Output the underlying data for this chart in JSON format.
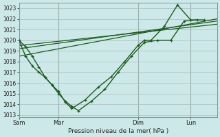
{
  "xlabel": "Pression niveau de la mer( hPa )",
  "bg_color": "#cde8e8",
  "grid_color": "#aabcbc",
  "line_color": "#1a5c1a",
  "xtick_labels": [
    "Sam",
    "Mar",
    "Dim",
    "Lun"
  ],
  "xtick_positions": [
    0,
    3,
    9,
    13
  ],
  "ylim": [
    1012.8,
    1023.5
  ],
  "yticks": [
    1013,
    1014,
    1015,
    1016,
    1017,
    1018,
    1019,
    1020,
    1021,
    1022,
    1023
  ],
  "xmax": 15,
  "line1_x": [
    0,
    0.5,
    1.0,
    1.5,
    2.0,
    2.5,
    3.0,
    3.5,
    4.0,
    4.5,
    5.5,
    6.5,
    7.5,
    8.5,
    9.5,
    10.5,
    11.5,
    12.5,
    13.5
  ],
  "line1_y": [
    1020.0,
    1019.4,
    1018.5,
    1017.5,
    1016.5,
    1015.8,
    1015.0,
    1014.3,
    1013.8,
    1013.4,
    1014.3,
    1015.4,
    1017.0,
    1018.5,
    1019.8,
    1020.0,
    1020.0,
    1021.8,
    1021.9
  ],
  "line2_x": [
    0,
    0.5,
    1.0,
    1.5,
    2.0,
    2.5,
    3.0,
    3.5,
    4.0,
    5.0,
    6.0,
    7.0,
    8.0,
    9.0,
    9.5,
    10.0,
    11.0,
    12.0,
    13.0,
    14.0
  ],
  "line2_y": [
    1020.0,
    1018.5,
    1017.6,
    1017.0,
    1016.5,
    1015.8,
    1015.2,
    1014.2,
    1013.6,
    1014.4,
    1015.6,
    1016.6,
    1018.0,
    1019.5,
    1020.0,
    1020.0,
    1021.3,
    1023.3,
    1021.9,
    1021.9
  ],
  "line3_x": [
    0,
    15
  ],
  "line3_y": [
    1019.2,
    1021.8
  ],
  "line4_x": [
    0,
    15
  ],
  "line4_y": [
    1018.5,
    1022.0
  ],
  "line5_x": [
    0,
    15
  ],
  "line5_y": [
    1019.5,
    1021.5
  ]
}
